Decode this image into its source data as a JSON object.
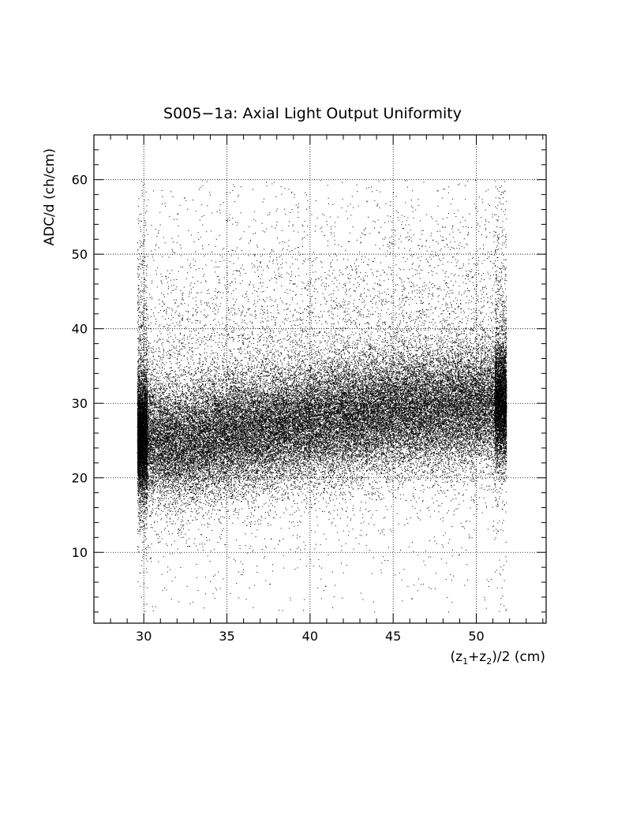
{
  "chart_data": {
    "type": "scatter",
    "title": "S005−1a: Axial Light Output Uniformity",
    "xlabel": {
      "pre": "(z",
      "sub1": "1",
      "mid": "+z",
      "sub2": "2",
      "post": ")/2 (cm)"
    },
    "ylabel": "ADC/d (ch/cm)",
    "xlim": [
      27.0,
      54.2
    ],
    "ylim": [
      0.5,
      66.0
    ],
    "x_ticks": [
      30,
      35,
      40,
      45,
      50
    ],
    "y_ticks": [
      10,
      20,
      30,
      40,
      50,
      60
    ],
    "x_tick_labels": [
      "30",
      "35",
      "40",
      "45",
      "50"
    ],
    "y_tick_labels": [
      "10",
      "20",
      "30",
      "40",
      "50",
      "60"
    ],
    "x_minor_step": 1,
    "y_minor_step": 2,
    "grid": true,
    "point_color": "#000000",
    "trend": {
      "x": [
        29.8,
        32,
        35,
        40,
        45,
        50,
        51.6
      ],
      "y": [
        25.5,
        24.5,
        26.0,
        27.5,
        29.0,
        29.5,
        30.0
      ]
    },
    "x_range_of_points": [
      29.6,
      51.8
    ],
    "y_range_of_points": [
      2.0,
      60.0
    ],
    "n_points": 60000
  }
}
